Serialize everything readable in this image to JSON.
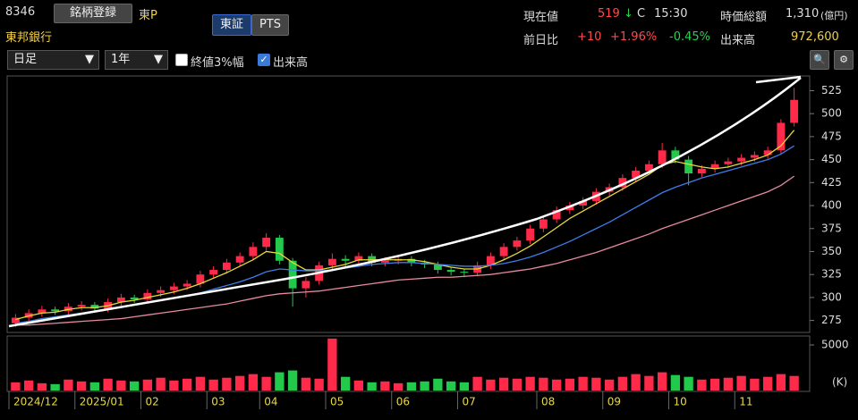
{
  "header": {
    "code": "8346",
    "register_button": "銘柄登録",
    "market": "東P",
    "name": "東邦銀行",
    "tabs": [
      "東証",
      "PTS"
    ],
    "price_label": "現在値",
    "price": "519",
    "arrow": "↓",
    "flag": "C",
    "time": "15:30",
    "cap_label": "時価総額",
    "cap": "1,310",
    "cap_unit": "(億円)",
    "change_label": "前日比",
    "change": "+10",
    "change_pct": "+1.96%",
    "other_pct": "-0.45%",
    "volume_label": "出来高",
    "volume": "972,600"
  },
  "controls": {
    "period": "日足",
    "range": "1年",
    "checkbox1": "終値3%幅",
    "checkbox2": "出来高"
  },
  "chart_data": {
    "type": "candlestick",
    "categories": [
      "2024/12",
      null,
      null,
      null,
      null,
      "2025/01",
      null,
      null,
      null,
      null,
      "02",
      null,
      null,
      null,
      null,
      "03",
      null,
      null,
      null,
      "04",
      null,
      null,
      null,
      null,
      "05",
      null,
      null,
      null,
      null,
      "06",
      null,
      null,
      null,
      null,
      "07",
      null,
      null,
      null,
      null,
      null,
      "08",
      null,
      null,
      null,
      null,
      "09",
      null,
      null,
      null,
      null,
      "10",
      null,
      null,
      null,
      null,
      "11",
      null,
      null,
      null,
      null
    ],
    "ohlc": [
      [
        272,
        282,
        268,
        278
      ],
      [
        278,
        287,
        274,
        283
      ],
      [
        283,
        291,
        279,
        287
      ],
      [
        287,
        290,
        281,
        285
      ],
      [
        285,
        294,
        281,
        290
      ],
      [
        290,
        296,
        286,
        292
      ],
      [
        292,
        295,
        284,
        288
      ],
      [
        288,
        299,
        284,
        295
      ],
      [
        295,
        304,
        291,
        300
      ],
      [
        300,
        303,
        294,
        298
      ],
      [
        298,
        309,
        294,
        305
      ],
      [
        305,
        312,
        301,
        308
      ],
      [
        308,
        316,
        304,
        312
      ],
      [
        312,
        319,
        308,
        315
      ],
      [
        315,
        329,
        311,
        325
      ],
      [
        325,
        334,
        321,
        330
      ],
      [
        330,
        342,
        326,
        338
      ],
      [
        338,
        349,
        334,
        345
      ],
      [
        345,
        360,
        341,
        355
      ],
      [
        355,
        370,
        351,
        365
      ],
      [
        365,
        368,
        336,
        340
      ],
      [
        340,
        343,
        290,
        310
      ],
      [
        310,
        322,
        300,
        318
      ],
      [
        318,
        339,
        314,
        335
      ],
      [
        335,
        348,
        331,
        342
      ],
      [
        342,
        346,
        334,
        340
      ],
      [
        340,
        349,
        336,
        345
      ],
      [
        345,
        348,
        334,
        338
      ],
      [
        338,
        344,
        334,
        340
      ],
      [
        340,
        346,
        336,
        342
      ],
      [
        342,
        345,
        334,
        338
      ],
      [
        338,
        341,
        332,
        336
      ],
      [
        336,
        339,
        326,
        330
      ],
      [
        330,
        333,
        324,
        328
      ],
      [
        328,
        331,
        322,
        327
      ],
      [
        327,
        339,
        323,
        335
      ],
      [
        335,
        349,
        331,
        345
      ],
      [
        345,
        359,
        341,
        355
      ],
      [
        355,
        366,
        351,
        362
      ],
      [
        362,
        379,
        358,
        375
      ],
      [
        375,
        389,
        371,
        385
      ],
      [
        385,
        399,
        381,
        395
      ],
      [
        395,
        404,
        391,
        400
      ],
      [
        400,
        409,
        396,
        405
      ],
      [
        405,
        419,
        401,
        415
      ],
      [
        415,
        424,
        411,
        420
      ],
      [
        420,
        434,
        416,
        430
      ],
      [
        430,
        442,
        426,
        438
      ],
      [
        438,
        449,
        434,
        445
      ],
      [
        445,
        468,
        441,
        460
      ],
      [
        460,
        464,
        446,
        450
      ],
      [
        450,
        454,
        422,
        435
      ],
      [
        435,
        444,
        431,
        440
      ],
      [
        440,
        449,
        436,
        445
      ],
      [
        445,
        452,
        441,
        448
      ],
      [
        448,
        456,
        444,
        452
      ],
      [
        452,
        459,
        448,
        455
      ],
      [
        455,
        464,
        451,
        460
      ],
      [
        460,
        494,
        456,
        490
      ],
      [
        490,
        528,
        486,
        515
      ]
    ],
    "up_color": "#ff2a4a",
    "down_color": "#22c94a",
    "series": [
      {
        "color": "#e8d838",
        "values": [
          276,
          280,
          283,
          284,
          287,
          289,
          289,
          291,
          295,
          297,
          300,
          303,
          306,
          310,
          315,
          321,
          327,
          334,
          341,
          350,
          348,
          338,
          330,
          330,
          333,
          336,
          341,
          341,
          341,
          341,
          341,
          339,
          336,
          333,
          331,
          331,
          335,
          341,
          348,
          356,
          366,
          376,
          386,
          394,
          402,
          410,
          418,
          426,
          434,
          444,
          448,
          445,
          442,
          440,
          442,
          446,
          450,
          455,
          465,
          482
        ]
      },
      {
        "color": "#3f7de8",
        "values": [
          272,
          274,
          277,
          279,
          281,
          283,
          285,
          287,
          289,
          292,
          294,
          297,
          299,
          302,
          305,
          309,
          313,
          317,
          322,
          328,
          331,
          330,
          329,
          329,
          330,
          332,
          334,
          336,
          337,
          338,
          338,
          337,
          336,
          335,
          334,
          334,
          335,
          337,
          340,
          344,
          349,
          355,
          361,
          368,
          375,
          382,
          390,
          398,
          406,
          414,
          420,
          425,
          430,
          434,
          438,
          442,
          446,
          450,
          456,
          465
        ]
      },
      {
        "color": "#e88aa0",
        "values": [
          270,
          270,
          271,
          272,
          273,
          274,
          275,
          276,
          277,
          279,
          281,
          283,
          285,
          287,
          289,
          291,
          293,
          296,
          299,
          302,
          304,
          305,
          306,
          307,
          309,
          311,
          313,
          315,
          317,
          319,
          320,
          321,
          322,
          322,
          323,
          324,
          325,
          327,
          329,
          331,
          334,
          337,
          341,
          345,
          349,
          354,
          359,
          364,
          369,
          375,
          380,
          385,
          390,
          395,
          400,
          405,
          410,
          415,
          422,
          432
        ]
      }
    ],
    "ylim": [
      262,
      541
    ],
    "yticks": [
      275,
      300,
      325,
      350,
      375,
      400,
      425,
      450,
      475,
      500,
      525
    ],
    "volume": [
      900,
      1100,
      800,
      700,
      1200,
      1000,
      900,
      1300,
      1100,
      1000,
      1200,
      1400,
      1100,
      1300,
      1500,
      1200,
      1400,
      1600,
      1800,
      1500,
      2000,
      2200,
      1400,
      1300,
      5700,
      1500,
      1100,
      900,
      1000,
      800,
      900,
      1000,
      1300,
      1000,
      900,
      1500,
      1200,
      1400,
      1300,
      1500,
      1400,
      1200,
      1300,
      1500,
      1400,
      1200,
      1500,
      1800,
      1600,
      2000,
      1700,
      1500,
      1200,
      1300,
      1400,
      1600,
      1300,
      1500,
      1800,
      1600
    ],
    "volume_ylim": [
      0,
      5784
    ],
    "volume_yticks": [
      5000
    ],
    "volume_unit": "(K)"
  }
}
